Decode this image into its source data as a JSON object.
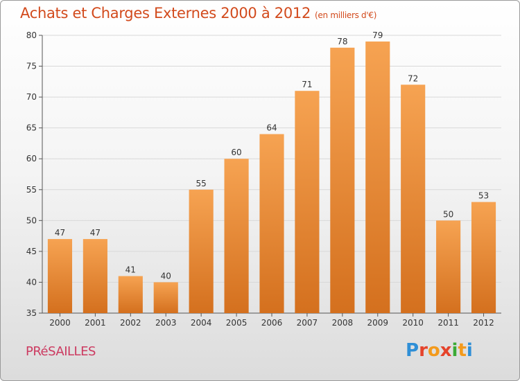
{
  "header": {
    "title": "Achats et Charges Externes 2000 à 2012",
    "unit": "(en milliers d'€)"
  },
  "footer": {
    "commune": "PRéSAILLES",
    "logo_letters": [
      "P",
      "r",
      "o",
      "x",
      "i",
      "t",
      "i"
    ],
    "logo_colors": [
      "#2f8fd6",
      "#e5432b",
      "#f39a1c",
      "#e5432b",
      "#3aaa35",
      "#f39a1c",
      "#2f8fd6"
    ]
  },
  "chart_data": {
    "type": "bar",
    "title": "Achats et Charges Externes 2000 à 2012",
    "subtitle": "(en milliers d'€)",
    "xlabel": "",
    "ylabel": "",
    "categories": [
      "2000",
      "2001",
      "2002",
      "2003",
      "2004",
      "2005",
      "2006",
      "2007",
      "2008",
      "2009",
      "2010",
      "2011",
      "2012"
    ],
    "values": [
      47,
      47,
      41,
      40,
      55,
      60,
      64,
      71,
      78,
      79,
      72,
      50,
      53
    ],
    "ylim": [
      35,
      80
    ],
    "yticks": [
      35,
      40,
      45,
      50,
      55,
      60,
      65,
      70,
      75,
      80
    ],
    "grid": true,
    "legend": "none",
    "colors": {
      "bar_top": "#f6a352",
      "bar_bottom": "#d4701e",
      "grid": "#d8d8d8"
    }
  }
}
